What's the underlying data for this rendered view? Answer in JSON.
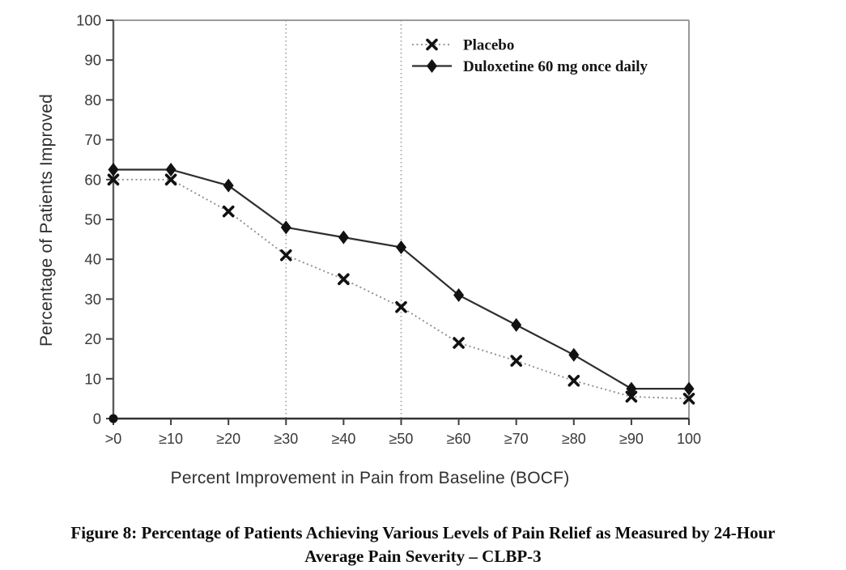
{
  "page": {
    "caption_line1": "Figure 8: Percentage of Patients Achieving Various Levels of Pain Relief as Measured by 24-Hour",
    "caption_line2": "Average Pain Severity – CLBP-3"
  },
  "chart_data": {
    "type": "line",
    "title": "",
    "xlabel": "Percent Improvement in Pain from Baseline (BOCF)",
    "ylabel": "Percentage of Patients Improved",
    "categories": [
      ">0",
      "≥10",
      "≥20",
      "≥30",
      "≥40",
      "≥50",
      "≥60",
      "≥70",
      "≥80",
      "≥90",
      "100"
    ],
    "series": [
      {
        "name": "Placebo",
        "marker": "x",
        "line_style": "dotted",
        "line_color": "#8f8f8f",
        "marker_color": "#111111",
        "values": [
          60,
          60,
          52,
          41,
          35,
          28,
          19,
          14.5,
          9.5,
          5.5,
          5
        ]
      },
      {
        "name": "Duloxetine 60 mg once daily",
        "marker": "diamond",
        "line_style": "solid",
        "line_color": "#2d2d2d",
        "marker_color": "#121212",
        "values": [
          62.5,
          62.5,
          58.5,
          48,
          45.5,
          43,
          31,
          23.5,
          16,
          7.5,
          7.5
        ]
      }
    ],
    "ylim": [
      0,
      100
    ],
    "y_tick_step": 10,
    "y_tick_labels": [
      "0",
      "10",
      "20",
      "30",
      "40",
      "50",
      "60",
      "70",
      "80",
      "90",
      "100"
    ],
    "reference_lines_x": [
      "≥30",
      "≥50"
    ],
    "origin_point": {
      "category": ">0",
      "value": 0
    },
    "legend_position": "top-right",
    "grid": false,
    "colors": {
      "axis_dark": "#3f3f3f",
      "frame_gray": "#8e8e8e",
      "tick_label": "#383838",
      "reference_line": "#9a9a9a",
      "legend_text": "#151515"
    }
  }
}
